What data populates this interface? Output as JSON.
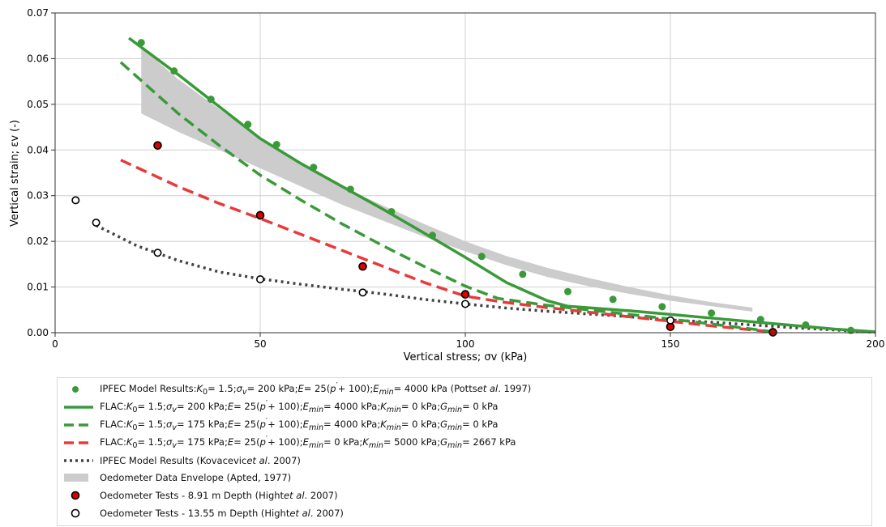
{
  "chart_data": {
    "type": "line",
    "xlabel": "Vertical stress; σv (kPa)",
    "ylabel": "Vertical strain; εv (-)",
    "xlim": [
      0,
      200
    ],
    "ylim": [
      0,
      0.07
    ],
    "xticks": [
      "0",
      "50",
      "100",
      "150",
      "200"
    ],
    "yticks": [
      "0.00",
      "0.01",
      "0.02",
      "0.03",
      "0.04",
      "0.05",
      "0.06",
      "0.07"
    ],
    "grid": true,
    "legend_position": "below plot",
    "colors": {
      "green": "#3a9a3a",
      "red": "#e83a3a",
      "dark": "#444444",
      "envelope": "#cccccc",
      "marker_red": "#dd0000"
    },
    "series": [
      {
        "name": "IPFEC Model Results: K0 = 1.5; σv = 200 kPa;  E = 25(p′ + 100); Emin = 4000 kPa (Potts et al. 1997)",
        "kind": "scatter",
        "x": [
          21,
          29,
          38,
          47,
          54,
          63,
          72,
          82,
          92,
          104,
          114,
          125,
          136,
          148,
          160,
          172,
          183,
          194
        ],
        "y": [
          0.0635,
          0.0573,
          0.0511,
          0.0456,
          0.0412,
          0.0362,
          0.0314,
          0.0265,
          0.0213,
          0.0167,
          0.0128,
          0.009,
          0.0073,
          0.0057,
          0.0043,
          0.0029,
          0.0017,
          0.0005
        ]
      },
      {
        "name": "FLAC: K0 = 1.5; σv = 200 kPa; E = 25(p′ + 100); Emin = 4000 kPa; Kmin = 0 kPa; Gmin = 0 kPa",
        "kind": "line",
        "x": [
          18,
          30,
          40,
          50,
          60,
          70,
          80,
          90,
          100,
          110,
          115,
          120,
          125,
          140,
          150,
          160,
          170,
          180,
          190,
          200
        ],
        "y": [
          0.0645,
          0.0565,
          0.0495,
          0.0425,
          0.037,
          0.032,
          0.027,
          0.0218,
          0.0165,
          0.011,
          0.009,
          0.007,
          0.0058,
          0.0048,
          0.004,
          0.0032,
          0.0024,
          0.0016,
          0.0008,
          0.0002
        ]
      },
      {
        "name": "FLAC: K0 = 1.5; σv = 175 kPa; E = 25(p′ + 100); Emin = 4000 kPa; Kmin = 0 kPa; Gmin = 0 kPa",
        "kind": "line",
        "x": [
          16,
          30,
          40,
          50,
          60,
          70,
          80,
          90,
          100,
          108,
          120,
          130,
          140,
          150,
          160,
          170,
          175
        ],
        "y": [
          0.0592,
          0.048,
          0.041,
          0.0345,
          0.029,
          0.0238,
          0.019,
          0.0145,
          0.0102,
          0.0075,
          0.006,
          0.005,
          0.004,
          0.003,
          0.0019,
          0.0008,
          0.0002
        ]
      },
      {
        "name": "FLAC: K0 = 1.5; σv = 175 kPa; E = 25(p′ + 100); Emin = 0 kPa; Kmin = 5000 kPa; Gmin = 2667 kPa",
        "kind": "line",
        "x": [
          16,
          30,
          40,
          50,
          60,
          70,
          80,
          90,
          100,
          110,
          120,
          130,
          140,
          150,
          160,
          170,
          175
        ],
        "y": [
          0.0378,
          0.032,
          0.0283,
          0.025,
          0.0215,
          0.018,
          0.0145,
          0.011,
          0.008,
          0.0066,
          0.0055,
          0.0045,
          0.0035,
          0.0025,
          0.0015,
          0.0006,
          0.0002
        ]
      },
      {
        "name": "IPFEC Model Results (Kovacevic et al. 2007)",
        "kind": "line",
        "x": [
          10,
          20,
          30,
          40,
          50,
          60,
          70,
          80,
          90,
          100,
          110,
          120,
          130,
          140,
          150,
          160,
          170,
          180,
          190,
          200
        ],
        "y": [
          0.0235,
          0.019,
          0.0158,
          0.0133,
          0.0118,
          0.0106,
          0.0095,
          0.0085,
          0.0073,
          0.0063,
          0.0054,
          0.0047,
          0.0041,
          0.0035,
          0.0028,
          0.0023,
          0.0017,
          0.0011,
          0.0006,
          0.0001
        ]
      },
      {
        "name": "Oedometer Data Envelope (Apted, 1977)",
        "kind": "band",
        "x": [
          21,
          30,
          40,
          50,
          60,
          70,
          80,
          90,
          100,
          110,
          120,
          130,
          140,
          150,
          160,
          170
        ],
        "upper": [
          0.0625,
          0.0555,
          0.049,
          0.0425,
          0.037,
          0.032,
          0.0278,
          0.0238,
          0.02,
          0.0168,
          0.0142,
          0.012,
          0.01,
          0.0082,
          0.0067,
          0.0055
        ],
        "lower": [
          0.048,
          0.044,
          0.04,
          0.036,
          0.032,
          0.028,
          0.0245,
          0.021,
          0.0178,
          0.0148,
          0.0122,
          0.0102,
          0.0085,
          0.007,
          0.0058,
          0.0046
        ]
      },
      {
        "name": "Oedometer Tests - 8.91 m Depth (Hight et al. 2007)",
        "kind": "scatter",
        "x": [
          25,
          50,
          75,
          100,
          150,
          175
        ],
        "y": [
          0.041,
          0.0257,
          0.0145,
          0.0084,
          0.0013,
          0.0001
        ]
      },
      {
        "name": "Oedometer Tests - 13.55 m Depth (Hight et al. 2007)",
        "kind": "scatter",
        "x": [
          5,
          10,
          25,
          50,
          75,
          100,
          150
        ],
        "y": [
          0.029,
          0.0241,
          0.0175,
          0.0117,
          0.0088,
          0.0063,
          0.0027
        ]
      }
    ]
  },
  "legend": {
    "items": [
      {
        "a": "IPFEC Model Results: ",
        "b": "K",
        "c": "0",
        "d": " = 1.5; ",
        "e": "σ",
        "f": "v",
        "g": " = 200 kPa;  ",
        "h": "E",
        "i": " = 25(",
        "j": "p",
        "k": "′",
        "l": " + 100); ",
        "m": "E",
        "n": "min",
        "o": " = 4000 kPa (Potts ",
        "p": "et al",
        "q": ". 1997)"
      },
      {
        "a": "FLAC: ",
        "b": "K",
        "c": "0",
        "d": " = 1.5; ",
        "e": "σ",
        "f": "v",
        "g": " = 200 kPa; ",
        "h": "E",
        "i": " = 25(",
        "j": "p",
        "k": "′",
        "l": " + 100); ",
        "m": "E",
        "n": "min",
        "o": " = 4000 kPa; ",
        "p": "K",
        "q": "min",
        "r": " = 0 kPa; ",
        "s": "G",
        "t": "min",
        "u": " = 0 kPa"
      },
      {
        "a": "FLAC: ",
        "b": "K",
        "c": "0",
        "d": " = 1.5; ",
        "e": "σ",
        "f": "v",
        "g": " = 175 kPa; ",
        "h": "E",
        "i": " = 25(",
        "j": "p",
        "k": "′",
        "l": " + 100); ",
        "m": "E",
        "n": "min",
        "o": " = 4000 kPa; ",
        "p": "K",
        "q": "min",
        "r": " = 0 kPa; ",
        "s": "G",
        "t": "min",
        "u": " = 0 kPa"
      },
      {
        "a": "FLAC: ",
        "b": "K",
        "c": "0",
        "d": " = 1.5; ",
        "e": "σ",
        "f": "v",
        "g": " = 175 kPa; ",
        "h": "E",
        "i": " = 25(",
        "j": "p",
        "k": "′",
        "l": " + 100); ",
        "m": "E",
        "n": "min",
        "o": " = 0 kPa; ",
        "p": "K",
        "q": "min",
        "r": " = 5000 kPa; ",
        "s": "G",
        "t": "min",
        "u": " = 2667 kPa"
      },
      {
        "a": "IPFEC Model Results (Kovacevic ",
        "b": "et al",
        "c": ". 2007)"
      },
      {
        "a": "Oedometer Data Envelope (Apted, 1977)"
      },
      {
        "a": "Oedometer Tests - 8.91 m Depth (Hight ",
        "b": "et al",
        "c": ". 2007)"
      },
      {
        "a": "Oedometer Tests - 13.55 m Depth (Hight ",
        "b": "et al",
        "c": ". 2007)"
      }
    ]
  }
}
